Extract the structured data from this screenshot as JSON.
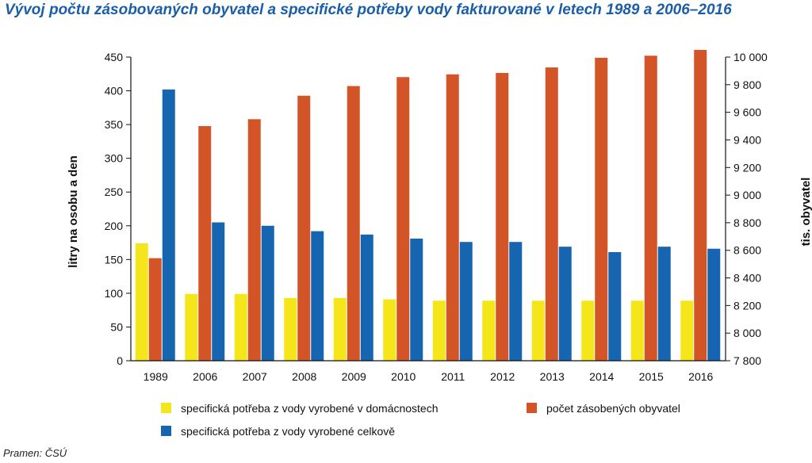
{
  "title": "Vývoj počtu zásobovaných obyvatel a specifické potřeby vody fakturované v letech 1989 a 2006–2016",
  "source": "Pramen: ČSÚ",
  "colors": {
    "yellow": "#f5e51b",
    "blue": "#1565b0",
    "orange": "#d35426"
  },
  "chart_data": {
    "type": "bar",
    "categories": [
      "1989",
      "2006",
      "2007",
      "2008",
      "2009",
      "2010",
      "2011",
      "2012",
      "2013",
      "2014",
      "2015",
      "2016"
    ],
    "ylabel_left": "litry na osobu a den",
    "ylabel_right": "tis. obyvatel",
    "ylim_left": [
      0,
      450
    ],
    "ylim_right": [
      7800,
      10000
    ],
    "yticks_left": [
      "0",
      "50",
      "100",
      "150",
      "200",
      "250",
      "300",
      "350",
      "400",
      "450"
    ],
    "yticks_right": [
      "7 800",
      "8 000",
      "8 200",
      "8 400",
      "8 600",
      "8 800",
      "9 000",
      "9 200",
      "9 400",
      "9 600",
      "9 800",
      "10 000"
    ],
    "series": [
      {
        "name": "specifická potřeba z vody vyrobené v domácnostech",
        "axis": "left",
        "color": "#f5e51b",
        "values": [
          174,
          99,
          99,
          93,
          93,
          91,
          89,
          89,
          89,
          89,
          89,
          89
        ]
      },
      {
        "name": "počet zásobených obyvatel",
        "axis": "right",
        "color": "#d35426",
        "values": [
          8543,
          9500,
          9550,
          9720,
          9790,
          9855,
          9875,
          9885,
          9925,
          9995,
          10010,
          10052
        ]
      },
      {
        "name": "specifická potřeba z vody vyrobené celkově",
        "axis": "left",
        "color": "#1565b0",
        "values": [
          402,
          205,
          200,
          192,
          187,
          181,
          176,
          176,
          169,
          161,
          169,
          166
        ]
      }
    ],
    "legend": [
      "specifická potřeba z vody vyrobené v domácnostech",
      "počet zásobených obyvatel",
      "specifická potřeba z vody vyrobené celkově"
    ],
    "grid": false
  }
}
